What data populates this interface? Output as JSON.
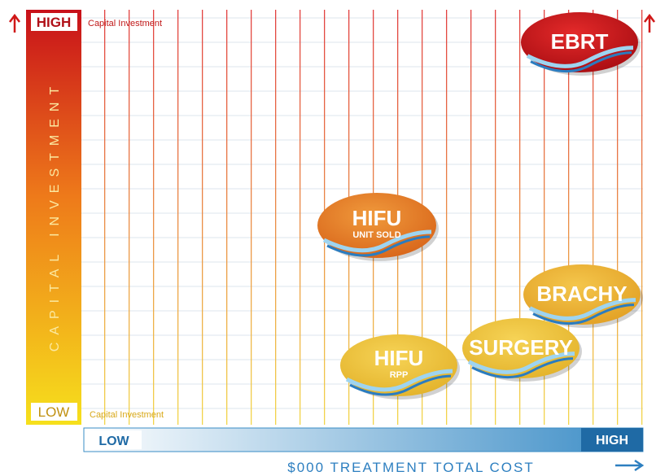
{
  "y_axis": {
    "title": "CAPITAL INVESTMENT",
    "high": "HIGH",
    "low": "LOW",
    "high_note": "Capital Investment",
    "low_note": "Capital Investment"
  },
  "x_axis": {
    "title": "$000 TREATMENT TOTAL COST",
    "low": "LOW",
    "high": "HIGH"
  },
  "nodes": [
    {
      "label": "EBRT"
    },
    {
      "label": "HIFU",
      "sublabel": "UNIT SOLD"
    },
    {
      "label": "BRACHY"
    },
    {
      "label": "SURGERY"
    },
    {
      "label": "HIFU",
      "sublabel": "RPP"
    }
  ]
}
